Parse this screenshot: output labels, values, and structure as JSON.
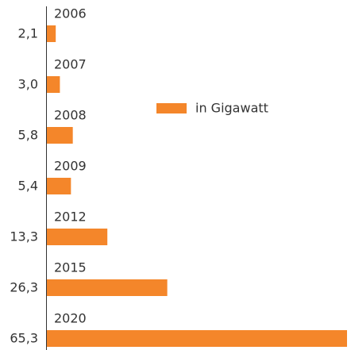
{
  "chart_data": {
    "type": "bar",
    "orientation": "horizontal",
    "categories": [
      "2006",
      "2007",
      "2008",
      "2009",
      "2012",
      "2015",
      "2020"
    ],
    "series": [
      {
        "name": "in Gigawatt",
        "color": "#f4862a",
        "values": [
          2.1,
          3.0,
          5.8,
          5.4,
          13.3,
          26.3,
          65.3
        ],
        "value_labels": [
          "2,1",
          "3,0",
          "5,8",
          "5,4",
          "13,3",
          "26,3",
          "65,3"
        ]
      }
    ]
  }
}
